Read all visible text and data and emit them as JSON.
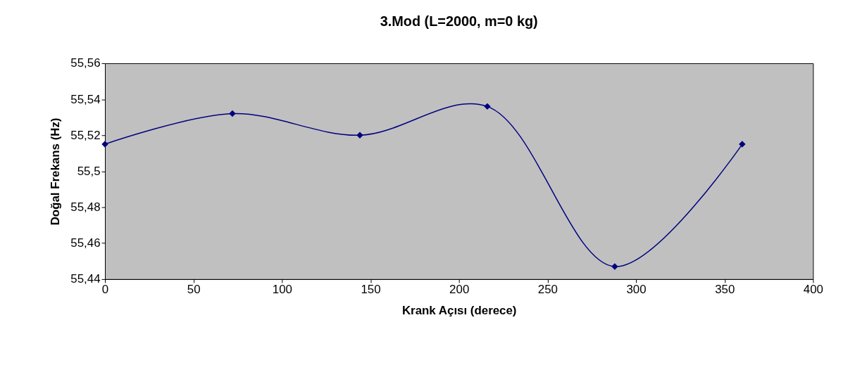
{
  "chart_data": {
    "type": "line",
    "title": "3.Mod (L=2000, m=0 kg)",
    "xlabel": "Krank Açısı (derece)",
    "ylabel": "Doğal Frekans (Hz)",
    "x": [
      0,
      72,
      144,
      216,
      288,
      360
    ],
    "series": [
      {
        "color": "#000080",
        "values": [
          55.515,
          55.532,
          55.52,
          55.536,
          55.447,
          55.515
        ]
      }
    ],
    "xlim": [
      0,
      400
    ],
    "xticks": [
      0,
      50,
      100,
      150,
      200,
      250,
      300,
      350,
      400
    ],
    "ylim": [
      55.44,
      55.56
    ],
    "yticks": [
      {
        "value": 55.44,
        "label": "55,44"
      },
      {
        "value": 55.46,
        "label": "55,46"
      },
      {
        "value": 55.48,
        "label": "55,48"
      },
      {
        "value": 55.5,
        "label": "55,5"
      },
      {
        "value": 55.52,
        "label": "55,52"
      },
      {
        "value": 55.54,
        "label": "55,54"
      },
      {
        "value": 55.56,
        "label": "55,56"
      }
    ],
    "grid": false,
    "legend": false,
    "marker": "diamond",
    "line_style": "solid"
  }
}
